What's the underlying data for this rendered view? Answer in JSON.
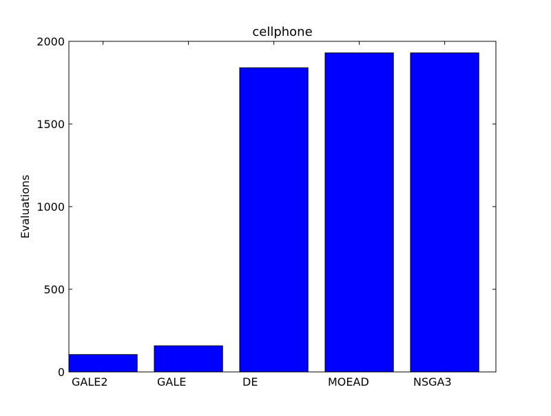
{
  "chart_data": {
    "type": "bar",
    "title": "cellphone",
    "xlabel": "",
    "ylabel": "Evaluations",
    "categories": [
      "GALE2",
      "GALE",
      "DE",
      "MOEAD",
      "NSGA3"
    ],
    "values": [
      105,
      158,
      1840,
      1930,
      1930
    ],
    "ylim": [
      0,
      2000
    ],
    "yticks": [
      0,
      500,
      1000,
      1500,
      2000
    ],
    "ytick_labels": [
      "0",
      "500",
      "1000",
      "1500",
      "2000"
    ],
    "grid": false,
    "legend": "none",
    "bar_color": "#0000ff",
    "edge_color": "#000000"
  }
}
